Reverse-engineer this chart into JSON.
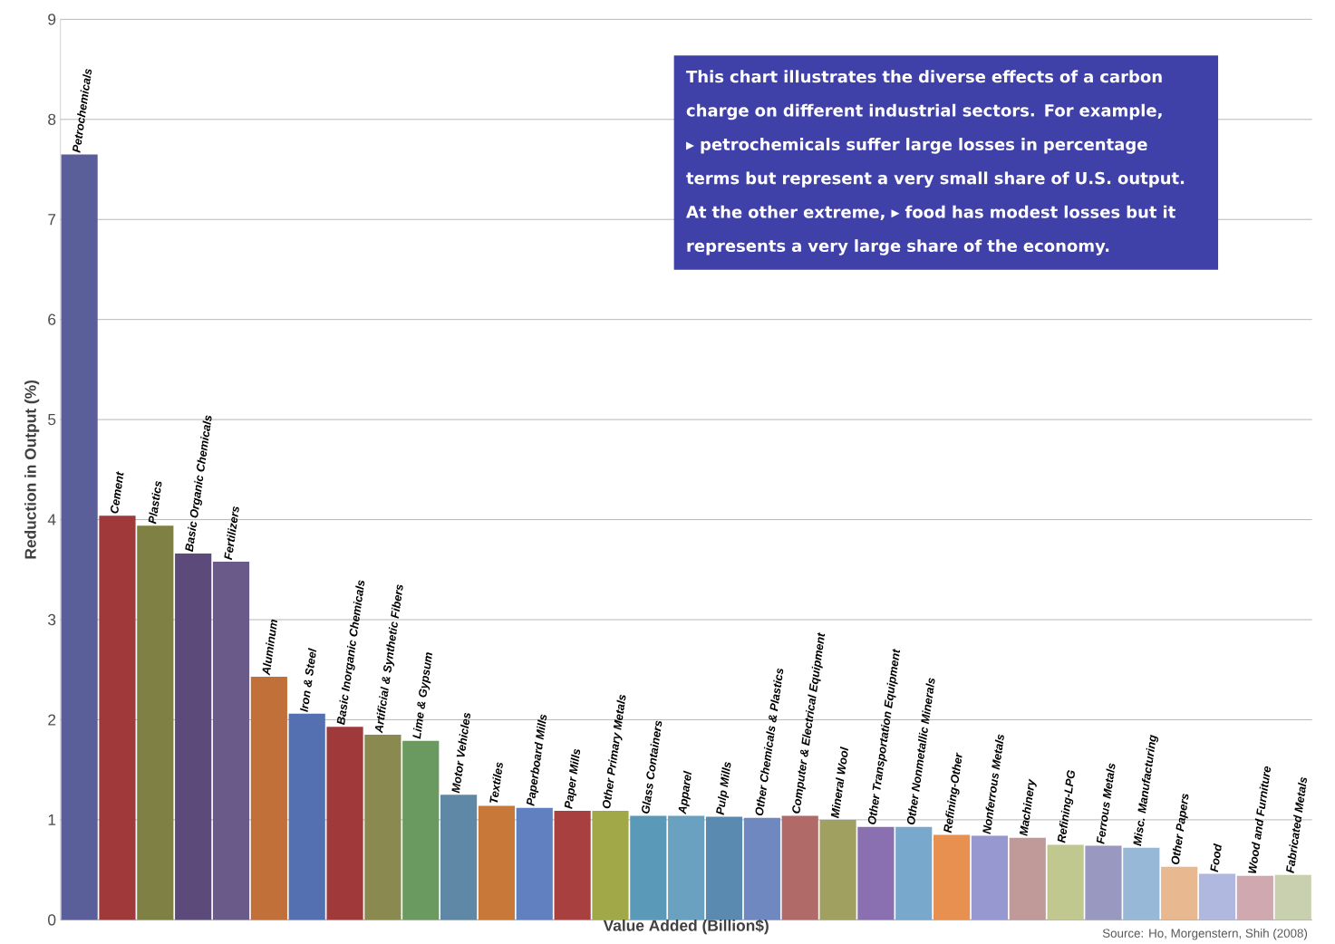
{
  "chart_data": {
    "type": "bar",
    "ylabel": "Reduction in Output (%)",
    "xlabel": "Value Added (Billion$)",
    "categories": [
      "Petrochemicals",
      "Cement",
      "Plastics",
      "Basic Organic Chemicals",
      "Fertilizers",
      "Aluminum",
      "Iron & Steel",
      "Basic Inorganic Chemicals",
      "Artificial & Synthetic Fibers",
      "Lime & Gypsum",
      "Motor Vehicles",
      "Textiles",
      "Paperboard Mills",
      "Paper Mills",
      "Other Primary Metals",
      "Glass Containers",
      "Apparel",
      "Pulp Mills",
      "Other Chemicals & Plastics",
      "Computer & Electrical Equipment",
      "Mineral Wool",
      "Other Transportation Equipment",
      "Other Nonmetallic Minerals",
      "Refining-Other",
      "Nonferrous Metals",
      "Machinery",
      "Refining-LPG",
      "Ferrous Metals",
      "Misc. Manufacturing",
      "Other Papers",
      "Food",
      "Wood and Furniture",
      "Fabricated Metals"
    ],
    "values": [
      7.65,
      4.04,
      3.94,
      3.66,
      3.58,
      2.43,
      2.06,
      1.93,
      1.85,
      1.79,
      1.25,
      1.14,
      1.12,
      1.09,
      1.09,
      1.04,
      1.04,
      1.03,
      1.02,
      1.04,
      1.0,
      0.93,
      0.93,
      0.85,
      0.84,
      0.82,
      0.75,
      0.74,
      0.72,
      0.53,
      0.46,
      0.44,
      0.45
    ],
    "colors": [
      "#5a5f9a",
      "#a03a3a",
      "#7f8044",
      "#5b4a7a",
      "#6a5a8a",
      "#c07038",
      "#5570b0",
      "#a03a3a",
      "#8a8a50",
      "#6a9a60",
      "#5e88a5",
      "#c87838",
      "#6080c0",
      "#a84040",
      "#a0a848",
      "#5a9ab8",
      "#6aa0c0",
      "#5a8ab0",
      "#7088c0",
      "#b06a68",
      "#a0a060",
      "#8a70b0",
      "#78a8cc",
      "#e89050",
      "#9898d0",
      "#c09a98",
      "#c0c890",
      "#9898c0",
      "#98b8d8",
      "#e8b890",
      "#b0b8e0",
      "#d0a8b0",
      "#c8d0b0"
    ],
    "ylim": [
      0,
      9
    ],
    "yticks": [
      0,
      1,
      2,
      3,
      4,
      5,
      6,
      7,
      8,
      9
    ],
    "grid": "y",
    "annotations": [
      "This chart illustrates the diverse effects of a carbon charge on different industrial sectors. For example, ▸ petrochemicals suffer large losses in percentage terms but represent a very small share of U.S. output. At the other extreme, ▸ food has modest losses but it represents a very large share of the economy.",
      "Source: Ho, Morgenstern, Shih (2008)"
    ]
  }
}
